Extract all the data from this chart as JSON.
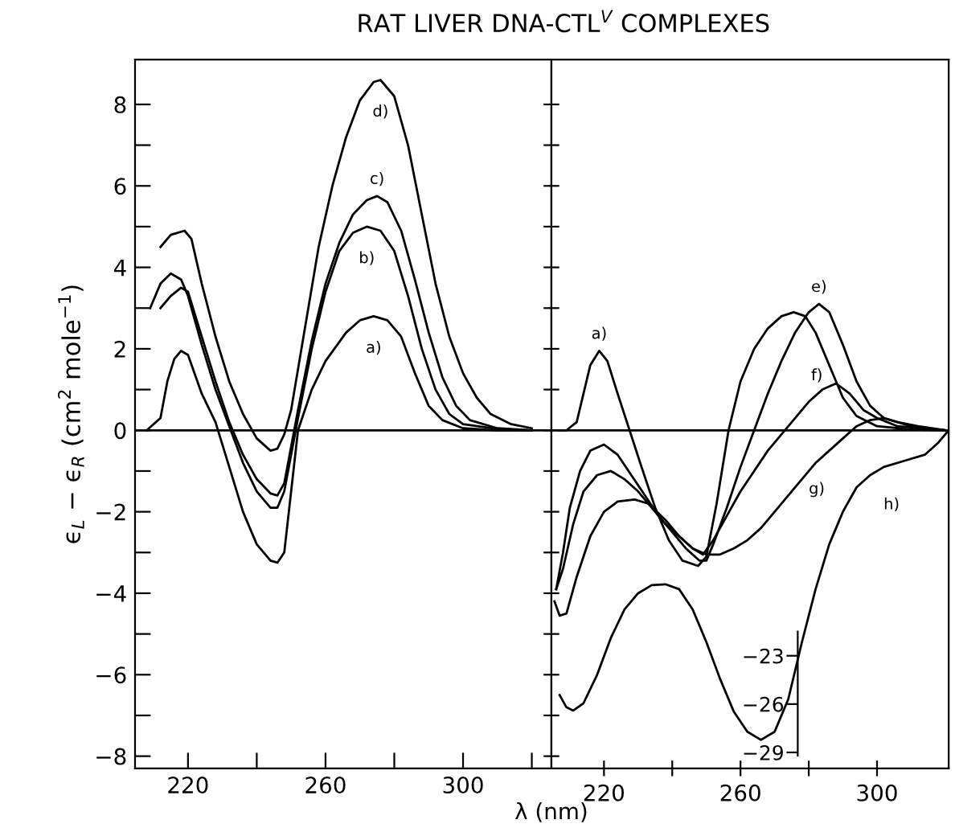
{
  "chart_data": [
    {
      "type": "line",
      "title": "RAT LIVER DNA-CTL$^{V}$ COMPLEXES",
      "xlabel": "λ (nm)",
      "ylabel": "ϵ$_{L}$ − ϵ$_{R}$ (cm$^{2}$ mole$^{−1}$)",
      "xlim": [
        204.6,
        325.7
      ],
      "ylim": [
        -8.3,
        9.1
      ],
      "xticks": [
        220,
        {
          "value": 240,
          "label": null
        },
        260,
        {
          "value": 280,
          "label": null
        },
        300,
        {
          "value": 320,
          "label": null
        }
      ],
      "yticks": [
        {
          "value": -8,
          "label": "−8"
        },
        {
          "value": -7,
          "label": null
        },
        {
          "value": -6,
          "label": "−6"
        },
        {
          "value": -5,
          "label": null
        },
        {
          "value": -4,
          "label": "−4"
        },
        {
          "value": -3,
          "label": null
        },
        {
          "value": -2,
          "label": "−2"
        },
        {
          "value": -1,
          "label": null
        },
        0,
        {
          "value": 1,
          "label": null
        },
        2,
        {
          "value": 3,
          "label": null
        },
        4,
        {
          "value": 5,
          "label": null
        },
        6,
        {
          "value": 7,
          "label": null
        },
        8
      ],
      "ref_lines": [
        {
          "axis": "y",
          "value": 0,
          "color": "#000000"
        }
      ],
      "grid": false,
      "legend": false,
      "marker": "none",
      "line_style": "solid",
      "series": [
        {
          "name": "a)",
          "color": "#000000",
          "x": [
            208,
            212,
            214,
            216,
            218,
            220,
            224,
            228,
            232,
            236,
            240,
            244,
            246,
            248,
            250,
            252,
            256,
            260,
            266,
            270,
            274,
            278,
            282,
            286,
            290,
            294,
            300,
            310,
            320
          ],
          "values": [
            0,
            0.3,
            1.2,
            1.75,
            1.95,
            1.85,
            0.9,
            0.2,
            -0.9,
            -2.0,
            -2.8,
            -3.2,
            -3.25,
            -3.0,
            -1.5,
            0.0,
            1.0,
            1.7,
            2.4,
            2.7,
            2.8,
            2.7,
            2.3,
            1.4,
            0.6,
            0.25,
            0.05,
            0,
            0
          ]
        },
        {
          "name": "b)",
          "color": "#000000",
          "x": [
            209,
            212,
            215,
            218,
            220,
            224,
            228,
            232,
            236,
            240,
            244,
            246,
            248,
            250,
            252,
            256,
            260,
            264,
            268,
            272,
            276,
            280,
            284,
            288,
            292,
            296,
            300,
            310,
            320
          ],
          "values": [
            3.0,
            3.6,
            3.85,
            3.7,
            3.3,
            2.1,
            1.0,
            0.1,
            -0.8,
            -1.5,
            -1.9,
            -1.9,
            -1.5,
            -0.6,
            0.3,
            2.0,
            3.4,
            4.4,
            4.85,
            5.0,
            4.9,
            4.4,
            3.3,
            2.0,
            1.0,
            0.4,
            0.15,
            0.03,
            0
          ]
        },
        {
          "name": "c)",
          "color": "#000000",
          "x": [
            212,
            215,
            218,
            220,
            224,
            228,
            232,
            236,
            240,
            244,
            246,
            248,
            250,
            252,
            256,
            260,
            264,
            268,
            272,
            275,
            278,
            282,
            286,
            290,
            294,
            298,
            302,
            310,
            320
          ],
          "values": [
            3.0,
            3.3,
            3.5,
            3.4,
            2.3,
            1.2,
            0.2,
            -0.6,
            -1.2,
            -1.55,
            -1.6,
            -1.3,
            -0.4,
            0.5,
            2.2,
            3.6,
            4.6,
            5.3,
            5.65,
            5.75,
            5.6,
            4.9,
            3.7,
            2.4,
            1.3,
            0.6,
            0.25,
            0.05,
            0
          ]
        },
        {
          "name": "d)",
          "color": "#000000",
          "x": [
            212,
            215,
            219,
            221,
            224,
            228,
            232,
            236,
            240,
            244,
            246,
            248,
            250,
            254,
            258,
            262,
            266,
            270,
            274,
            276,
            280,
            284,
            288,
            292,
            296,
            300,
            304,
            308,
            314,
            320
          ],
          "values": [
            4.5,
            4.8,
            4.9,
            4.7,
            3.6,
            2.3,
            1.2,
            0.4,
            -0.2,
            -0.5,
            -0.45,
            -0.1,
            0.5,
            2.5,
            4.5,
            6.0,
            7.2,
            8.1,
            8.55,
            8.6,
            8.2,
            7.0,
            5.3,
            3.6,
            2.3,
            1.4,
            0.8,
            0.4,
            0.15,
            0.05
          ]
        }
      ]
    },
    {
      "type": "line",
      "xlim": [
        204.6,
        321
      ],
      "ylim": [
        -8.3,
        9.1
      ],
      "tick_labels": "x",
      "xticks": [
        220,
        {
          "value": 240,
          "label": null
        },
        260,
        {
          "value": 280,
          "label": null
        },
        300
      ],
      "yticks": [
        -8,
        -7,
        -6,
        -5,
        -4,
        -3,
        -2,
        -1,
        0,
        1,
        2,
        3,
        4,
        5,
        6,
        7,
        8
      ],
      "y3lim": [
        -29.2,
        -21.5
      ],
      "y3ticks": [
        {
          "value": -23,
          "label": "−23"
        },
        {
          "value": -26,
          "label": "−26"
        },
        {
          "value": -29,
          "label": "−29"
        }
      ],
      "ref_lines": [
        {
          "axis": "y",
          "value": 0,
          "color": "#000000"
        }
      ],
      "grid": false,
      "legend": false,
      "marker": "none",
      "line_style": "solid",
      "series": [
        {
          "name": "a)",
          "color": "#000000",
          "x": [
            207,
            209,
            212,
            214,
            216,
            218.6,
            221,
            224,
            227.5,
            231,
            235,
            239,
            243,
            247.6,
            250,
            253,
            256.5,
            260,
            264,
            268,
            272,
            275.6,
            279,
            282,
            286,
            290,
            294,
            300,
            310,
            320
          ],
          "values": [
            0,
            0,
            0.2,
            0.9,
            1.6,
            1.95,
            1.7,
            0.9,
            0,
            -0.9,
            -1.9,
            -2.7,
            -3.2,
            -3.33,
            -3.1,
            -1.8,
            0,
            1.2,
            2.0,
            2.5,
            2.8,
            2.9,
            2.8,
            2.4,
            1.6,
            0.8,
            0.35,
            0.1,
            0.02,
            0
          ]
        },
        {
          "name": "e)",
          "color": "#000000",
          "x": [
            206,
            208,
            210,
            213,
            216,
            220,
            224,
            228,
            232,
            236,
            240,
            244,
            248,
            250,
            252,
            256,
            260,
            264,
            268,
            272,
            276,
            280,
            283,
            286,
            290,
            294,
            298,
            302,
            310,
            320
          ],
          "values": [
            -3.9,
            -3.0,
            -1.9,
            -1.0,
            -0.5,
            -0.35,
            -0.6,
            -1.1,
            -1.6,
            -2.1,
            -2.5,
            -2.9,
            -3.2,
            -3.2,
            -2.8,
            -1.9,
            -0.9,
            0.0,
            0.9,
            1.7,
            2.4,
            2.9,
            3.1,
            2.9,
            2.1,
            1.2,
            0.6,
            0.3,
            0.1,
            0
          ]
        },
        {
          "name": "f)",
          "color": "#000000",
          "x": [
            206,
            208,
            211,
            214,
            218,
            222,
            226,
            230,
            234,
            238,
            242,
            246,
            249,
            252,
            256,
            260,
            264,
            268,
            272,
            276,
            280,
            284,
            288,
            292,
            296,
            300,
            306,
            320
          ],
          "values": [
            -3.9,
            -3.4,
            -2.3,
            -1.5,
            -1.1,
            -1.0,
            -1.2,
            -1.5,
            -1.9,
            -2.3,
            -2.6,
            -2.9,
            -3.05,
            -2.7,
            -2.1,
            -1.5,
            -1.0,
            -0.5,
            -0.1,
            0.3,
            0.7,
            1.0,
            1.15,
            0.9,
            0.5,
            0.3,
            0.1,
            0
          ]
        },
        {
          "name": "g)",
          "color": "#000000",
          "x": [
            205.5,
            207,
            209,
            212,
            216,
            220,
            224,
            229,
            233,
            238,
            242,
            246,
            250,
            254,
            258,
            262,
            266,
            270,
            274,
            278,
            282,
            286,
            290,
            294,
            298,
            302,
            306,
            312,
            320
          ],
          "values": [
            -4.2,
            -4.55,
            -4.5,
            -3.6,
            -2.6,
            -2.0,
            -1.75,
            -1.7,
            -1.8,
            -2.2,
            -2.6,
            -2.9,
            -3.05,
            -3.05,
            -2.9,
            -2.7,
            -2.4,
            -2.0,
            -1.6,
            -1.2,
            -0.8,
            -0.5,
            -0.2,
            0.1,
            0.25,
            0.3,
            0.2,
            0.1,
            0
          ]
        },
        {
          "name": "h)",
          "color": "#000000",
          "x": [
            207,
            209,
            211,
            214,
            218,
            222,
            226,
            230,
            234,
            238,
            242,
            246,
            250,
            254,
            258,
            262,
            266,
            270,
            274,
            278,
            282,
            286,
            290,
            294,
            298,
            302,
            308,
            314,
            318,
            321
          ],
          "values": [
            -6.5,
            -6.8,
            -6.88,
            -6.7,
            -6.0,
            -5.1,
            -4.4,
            -4.0,
            -3.8,
            -3.78,
            -3.9,
            -4.4,
            -5.2,
            -6.1,
            -6.9,
            -7.4,
            -7.6,
            -7.4,
            -6.6,
            -5.2,
            -3.9,
            -2.8,
            -2.0,
            -1.4,
            -1.1,
            -0.9,
            -0.75,
            -0.6,
            -0.3,
            0
          ]
        }
      ]
    }
  ]
}
